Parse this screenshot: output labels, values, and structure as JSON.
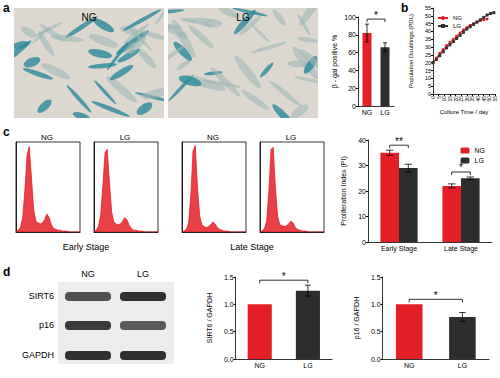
{
  "panel_labels": [
    "a",
    "b",
    "c",
    "d"
  ],
  "panel_a_images": [
    "NG",
    "LG"
  ],
  "panel_c_groups": [
    "Early Stage",
    "Late Stage"
  ],
  "panel_d_blot": {
    "lanes": [
      "NG",
      "LG"
    ],
    "bands": [
      "SIRT6",
      "p16",
      "GAPDH"
    ]
  },
  "chart_data": [
    {
      "type": "bar",
      "categories": [
        "NG",
        "LG"
      ],
      "values": [
        82,
        66
      ],
      "errors": [
        10,
        5
      ],
      "colors": [
        "#e41f26",
        "#2d2d2d"
      ],
      "ylabel": "β - gal positive %",
      "ylim": [
        0,
        100
      ],
      "yticks": [
        0,
        20,
        40,
        60,
        80,
        100
      ],
      "grid": false,
      "significance": [
        {
          "pair": [
            0,
            1
          ],
          "label": "*"
        }
      ]
    },
    {
      "type": "line",
      "xlabel": "Culture Time / day",
      "ylabel": "Population Doublings (PDL)",
      "xlim": [
        0,
        55
      ],
      "xticks": [
        0,
        5,
        10,
        15,
        20,
        25,
        30,
        35,
        40,
        45,
        50,
        55
      ],
      "ylim": [
        0,
        55
      ],
      "yticks": [
        0,
        5,
        10,
        15,
        20,
        25,
        30,
        35,
        40,
        45,
        50,
        55
      ],
      "legend": "upper left",
      "grid": false,
      "series": [
        {
          "name": "NG",
          "color": "#e41f26",
          "marker": "circle",
          "x": [
            0,
            3,
            6,
            9,
            12,
            15,
            18,
            21,
            24,
            27,
            30,
            33,
            36,
            39,
            42,
            45,
            48
          ],
          "values": [
            20,
            23,
            26,
            28.5,
            31,
            33,
            35,
            37,
            39,
            41,
            42.5,
            44,
            45,
            46,
            47,
            47.5,
            48
          ]
        },
        {
          "name": "LG",
          "color": "#333333",
          "marker": "square",
          "x": [
            0,
            3,
            6,
            9,
            12,
            15,
            18,
            21,
            24,
            27,
            30,
            33,
            36,
            39,
            42,
            45,
            48,
            51,
            54
          ],
          "values": [
            20,
            22,
            24.5,
            27,
            29.5,
            31.5,
            33.5,
            35.5,
            37.5,
            39.5,
            41.5,
            43,
            44.5,
            46,
            47.5,
            49,
            50.5,
            51.5,
            52
          ]
        }
      ]
    },
    {
      "type": "area",
      "title": "NG",
      "color": "#e41f26",
      "tick_labels": false,
      "xlim": [
        0,
        29
      ],
      "ylim": [
        0,
        100
      ],
      "x": [
        0,
        1,
        2,
        3,
        4,
        5,
        6,
        7,
        8,
        9,
        10,
        11,
        12,
        13,
        14,
        15,
        16,
        17,
        18,
        19,
        20,
        21,
        22,
        23,
        24,
        25,
        26,
        27,
        28,
        29
      ],
      "values": [
        0,
        2,
        5,
        15,
        45,
        85,
        95,
        60,
        25,
        12,
        10,
        9,
        10,
        14,
        20,
        16,
        8,
        4,
        3,
        2,
        2,
        1,
        1,
        1,
        0,
        0,
        0,
        0,
        0,
        0
      ]
    },
    {
      "type": "area",
      "title": "LG",
      "color": "#e41f26",
      "tick_labels": false,
      "xlim": [
        0,
        29
      ],
      "ylim": [
        0,
        100
      ],
      "x": [
        0,
        1,
        2,
        3,
        4,
        5,
        6,
        7,
        8,
        9,
        10,
        11,
        12,
        13,
        14,
        15,
        16,
        17,
        18,
        19,
        20,
        21,
        22,
        23,
        24,
        25,
        26,
        27,
        28,
        29
      ],
      "values": [
        0,
        2,
        6,
        18,
        50,
        88,
        92,
        55,
        22,
        11,
        9,
        8,
        9,
        12,
        16,
        13,
        7,
        4,
        2,
        2,
        1,
        1,
        1,
        0,
        0,
        0,
        0,
        0,
        0,
        0
      ]
    },
    {
      "type": "area",
      "title": "NG",
      "color": "#e41f26",
      "tick_labels": false,
      "xlim": [
        0,
        29
      ],
      "ylim": [
        0,
        100
      ],
      "x": [
        0,
        1,
        2,
        3,
        4,
        5,
        6,
        7,
        8,
        9,
        10,
        11,
        12,
        13,
        14,
        15,
        16,
        17,
        18,
        19,
        20,
        21,
        22,
        23,
        24,
        25,
        26,
        27,
        28,
        29
      ],
      "values": [
        0,
        1,
        3,
        10,
        40,
        90,
        96,
        50,
        18,
        8,
        6,
        5,
        6,
        8,
        11,
        9,
        5,
        3,
        2,
        1,
        1,
        1,
        0,
        0,
        0,
        0,
        0,
        0,
        0,
        0
      ]
    },
    {
      "type": "area",
      "title": "LG",
      "color": "#e41f26",
      "tick_labels": false,
      "xlim": [
        0,
        29
      ],
      "ylim": [
        0,
        100
      ],
      "x": [
        0,
        1,
        2,
        3,
        4,
        5,
        6,
        7,
        8,
        9,
        10,
        11,
        12,
        13,
        14,
        15,
        16,
        17,
        18,
        19,
        20,
        21,
        22,
        23,
        24,
        25,
        26,
        27,
        28,
        29
      ],
      "values": [
        0,
        1,
        4,
        12,
        44,
        92,
        94,
        48,
        17,
        8,
        7,
        6,
        7,
        9,
        12,
        10,
        5,
        3,
        2,
        1,
        1,
        1,
        0,
        0,
        0,
        0,
        0,
        0,
        0,
        0
      ]
    },
    {
      "type": "bar",
      "categories": [
        "Early Stage",
        "Late Stage"
      ],
      "ylabel": "Proliferation Index (PI)",
      "ylim": [
        0,
        40
      ],
      "yticks": [
        0,
        10,
        20,
        30,
        40
      ],
      "legend": "upper right",
      "grid": false,
      "series": [
        {
          "name": "NG",
          "color": "#e41f26",
          "values": [
            35,
            22
          ],
          "errors": [
            1,
            0.8
          ]
        },
        {
          "name": "LG",
          "color": "#2d2d2d",
          "values": [
            29,
            25
          ],
          "errors": [
            1.5,
            0.5
          ]
        }
      ],
      "significance": [
        {
          "category": 0,
          "label": "**"
        },
        {
          "category": 1,
          "label": "*"
        }
      ]
    },
    {
      "type": "bar",
      "categories": [
        "NG",
        "LG"
      ],
      "values": [
        1,
        1.25
      ],
      "errors": [
        0,
        0.1
      ],
      "colors": [
        "#e41f26",
        "#2d2d2d"
      ],
      "ylabel": "SIRT6 / GAPDH",
      "ylim": [
        0,
        1.5
      ],
      "yticks": [
        {
          "value": 0,
          "label": "0.0"
        },
        0.5,
        {
          "value": 1,
          "label": "1.0"
        },
        1.5
      ],
      "grid": false,
      "significance": [
        {
          "pair": [
            0,
            1
          ],
          "label": "*"
        }
      ]
    },
    {
      "type": "bar",
      "categories": [
        "NG",
        "LG"
      ],
      "values": [
        1,
        0.77
      ],
      "errors": [
        0,
        0.08
      ],
      "colors": [
        "#e41f26",
        "#2d2d2d"
      ],
      "ylabel": "p16 / GAPDH",
      "ylim": [
        0,
        1.5
      ],
      "yticks": [
        {
          "value": 0,
          "label": "0.0"
        },
        0.5,
        {
          "value": 1,
          "label": "1.0"
        },
        1.5
      ],
      "grid": false,
      "significance": [
        {
          "pair": [
            0,
            1
          ],
          "label": "*"
        }
      ]
    }
  ]
}
